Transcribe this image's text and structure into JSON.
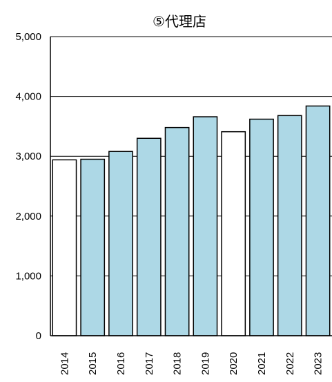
{
  "chart_data": {
    "type": "bar",
    "title": "⑤代理店",
    "xlabel": "",
    "ylabel": "",
    "categories": [
      "2014",
      "2015",
      "2016",
      "2017",
      "2018",
      "2019",
      "2020",
      "2021",
      "2022",
      "2023"
    ],
    "values": [
      2940,
      2950,
      3080,
      3300,
      3480,
      3660,
      3410,
      3620,
      3680,
      3840
    ],
    "bar_fills": [
      "#ffffff",
      "#add8e6",
      "#add8e6",
      "#add8e6",
      "#add8e6",
      "#add8e6",
      "#ffffff",
      "#add8e6",
      "#add8e6",
      "#add8e6"
    ],
    "ylim": [
      0,
      5000
    ],
    "yticks": [
      0,
      1000,
      2000,
      3000,
      4000,
      5000
    ],
    "ytick_labels": [
      "0",
      "1,000",
      "2,000",
      "3,000",
      "4,000",
      "5,000"
    ],
    "grid": true,
    "legend": "none"
  },
  "colors": {
    "accent_bar": "#add8e6",
    "plain_bar": "#ffffff",
    "bar_border": "#000000",
    "grid": "#000000"
  }
}
